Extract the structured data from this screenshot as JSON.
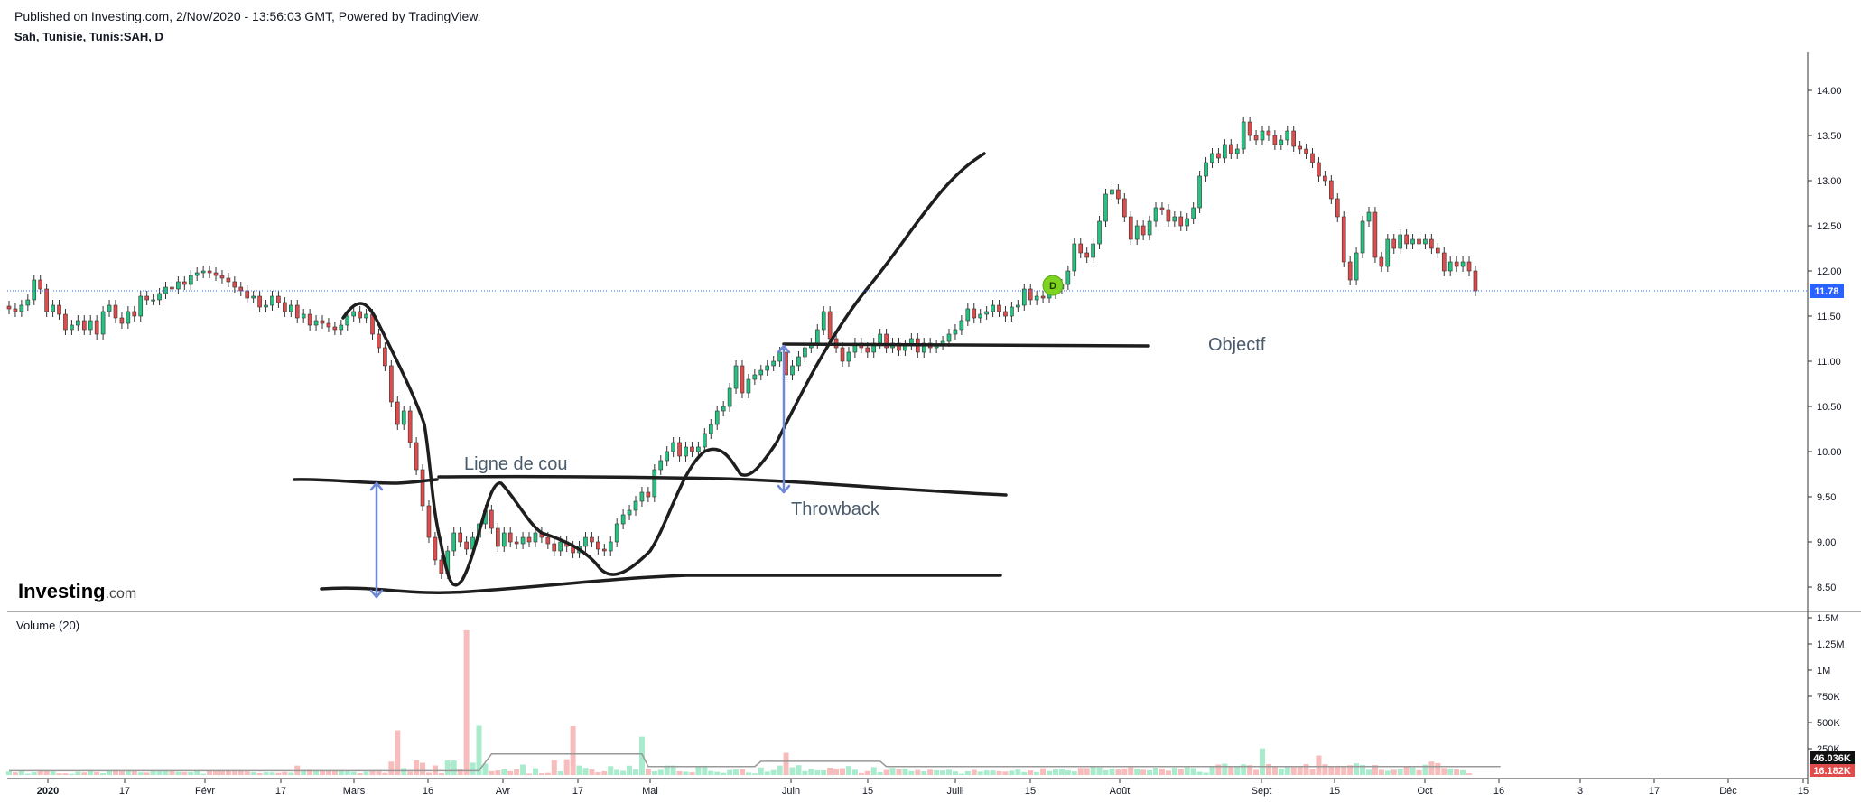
{
  "header": {
    "published": "Published on Investing.com, 2/Nov/2020 - 13:56:03 GMT, Powered by TradingView.",
    "symbol": "Sah, Tunisie, Tunis:SAH, D"
  },
  "brand": {
    "logo": "Investing",
    "logo_suffix": ".com"
  },
  "colors": {
    "up": "#26c281",
    "down": "#e04b4b",
    "up_volume": "#a8ebcd",
    "down_volume": "#f7bcbc",
    "price_line": "#2962ff",
    "drawing": "#1e1e1e",
    "arrow": "#6e89d6",
    "annotation_text": "#4a5b6c",
    "marker": "#7ed321"
  },
  "annotations": {
    "neckline_label": "Ligne de cou",
    "throwback_label": "Throwback",
    "target_label": "Objectf",
    "marker_label": "D"
  },
  "chart_data": [
    {
      "type": "candlestick",
      "symbol": "Tunis:SAH",
      "timeframe": "D",
      "y_range": [
        8.3,
        14.2
      ],
      "y_ticks": [
        "8.50",
        "9.00",
        "9.50",
        "10.00",
        "10.50",
        "11.00",
        "11.50",
        "12.00",
        "12.50",
        "13.00",
        "13.50",
        "14.00"
      ],
      "x_ticks": [
        "2020",
        "17",
        "Févr",
        "17",
        "Mars",
        "16",
        "Avr",
        "17",
        "Mai",
        "Juin",
        "15",
        "Juill",
        "15",
        "Août",
        "Sept",
        "15",
        "Oct",
        "16",
        "3",
        "17",
        "Déc",
        "15"
      ],
      "last_price": "11.78",
      "grid": false,
      "close": [
        11.58,
        11.55,
        11.62,
        11.68,
        11.9,
        11.8,
        11.55,
        11.62,
        11.52,
        11.35,
        11.4,
        11.45,
        11.35,
        11.45,
        11.3,
        11.55,
        11.62,
        11.48,
        11.42,
        11.55,
        11.5,
        11.72,
        11.68,
        11.68,
        11.75,
        11.82,
        11.8,
        11.88,
        11.85,
        11.95,
        11.98,
        12.0,
        11.98,
        11.95,
        11.92,
        11.88,
        11.82,
        11.78,
        11.7,
        11.72,
        11.6,
        11.62,
        11.72,
        11.65,
        11.55,
        11.62,
        11.48,
        11.52,
        11.4,
        11.45,
        11.42,
        11.38,
        11.35,
        11.4,
        11.5,
        11.55,
        11.48,
        11.52,
        11.3,
        11.15,
        10.95,
        10.55,
        10.3,
        10.45,
        10.1,
        9.8,
        9.4,
        9.05,
        8.8,
        8.65,
        8.9,
        9.1,
        9.0,
        8.92,
        9.05,
        9.2,
        9.35,
        9.15,
        8.95,
        9.1,
        9.0,
        8.98,
        9.05,
        9.0,
        9.1,
        9.05,
        8.98,
        8.9,
        9.0,
        8.95,
        8.88,
        8.95,
        9.05,
        9.0,
        8.92,
        8.9,
        9.0,
        9.2,
        9.3,
        9.35,
        9.45,
        9.55,
        9.5,
        9.8,
        9.9,
        10.0,
        10.1,
        9.95,
        10.05,
        10.0,
        10.05,
        10.2,
        10.3,
        10.45,
        10.5,
        10.7,
        10.95,
        10.65,
        10.8,
        10.85,
        10.9,
        10.95,
        11.0,
        11.1,
        10.85,
        10.95,
        11.05,
        11.15,
        11.2,
        11.35,
        11.55,
        11.25,
        11.15,
        11.0,
        11.1,
        11.2,
        11.15,
        11.1,
        11.2,
        11.3,
        11.15,
        11.2,
        11.12,
        11.18,
        11.25,
        11.1,
        11.2,
        11.15,
        11.18,
        11.22,
        11.3,
        11.35,
        11.45,
        11.58,
        11.48,
        11.52,
        11.55,
        11.62,
        11.55,
        11.5,
        11.6,
        11.62,
        11.8,
        11.68,
        11.72,
        11.7,
        11.75,
        11.8,
        11.85,
        12.0,
        12.3,
        12.2,
        12.15,
        12.3,
        12.55,
        12.85,
        12.9,
        12.8,
        12.6,
        12.35,
        12.5,
        12.4,
        12.55,
        12.7,
        12.68,
        12.55,
        12.6,
        12.5,
        12.58,
        12.7,
        13.05,
        13.2,
        13.3,
        13.25,
        13.4,
        13.3,
        13.35,
        13.65,
        13.5,
        13.45,
        13.55,
        13.5,
        13.4,
        13.45,
        13.55,
        13.38,
        13.35,
        13.3,
        13.2,
        13.05,
        13.0,
        12.8,
        12.6,
        12.1,
        11.9,
        12.2,
        12.55,
        12.65,
        12.15,
        12.05,
        12.35,
        12.25,
        12.4,
        12.3,
        12.35,
        12.3,
        12.35,
        12.25,
        12.2,
        12.0,
        12.1,
        12.05,
        12.1,
        12.0,
        11.78
      ]
    },
    {
      "type": "bar",
      "title": "Volume (20)",
      "y_range": [
        0,
        1500000
      ],
      "y_ticks": [
        "1.5M",
        "1.25M",
        "1M",
        "750K",
        "500K",
        "250K"
      ],
      "badges": [
        "46.036K",
        "16.182K"
      ],
      "series": [
        {
          "values": [
            33,
            24,
            44,
            13,
            26,
            35,
            36,
            33,
            16,
            16,
            11,
            29,
            24,
            39,
            28,
            17,
            35,
            47,
            33,
            46,
            40,
            24,
            23,
            37,
            33,
            40,
            43,
            28,
            27,
            26,
            39,
            12,
            44,
            34,
            42,
            41,
            34,
            35,
            32,
            25,
            18,
            25,
            24,
            20,
            28,
            22,
            89,
            48,
            49,
            44,
            44,
            36,
            41,
            38,
            33,
            29,
            17,
            30,
            38,
            33,
            20,
            127,
            426,
            65,
            31,
            138,
            116,
            22,
            90,
            18,
            137,
            137,
            52,
            1380,
            117,
            470,
            107,
            36,
            42,
            52,
            36,
            52,
            99,
            13,
            64,
            16,
            20,
            141,
            34,
            149,
            466,
            89,
            67,
            51,
            25,
            35,
            84,
            48,
            39,
            88,
            51,
            365,
            58,
            34,
            48,
            89,
            89,
            35,
            31,
            25,
            74,
            87,
            38,
            29,
            20,
            46,
            51,
            53,
            23,
            15,
            71,
            32,
            46,
            89,
            211,
            73,
            93,
            36,
            57,
            44,
            43,
            69,
            61,
            64,
            85,
            49,
            19,
            36,
            75,
            26,
            47,
            67,
            55,
            61,
            36,
            46,
            35,
            49,
            43,
            41,
            49,
            33,
            12,
            35,
            47,
            31,
            41,
            41,
            35,
            32,
            40,
            50,
            27,
            42,
            27,
            63,
            37,
            51,
            59,
            42,
            34,
            66,
            65,
            77,
            71,
            45,
            61,
            51,
            62,
            72,
            60,
            49,
            44,
            69,
            61,
            40,
            68,
            56,
            72,
            65,
            30,
            22,
            73,
            99,
            107,
            77,
            76,
            101,
            93,
            48,
            253,
            104,
            74,
            62,
            78,
            72,
            75,
            103,
            54,
            185,
            102,
            84,
            87,
            73,
            92,
            110,
            95,
            49,
            94,
            48,
            40,
            49,
            57,
            76,
            71,
            45,
            97,
            127,
            113,
            66,
            61,
            52,
            45,
            16
          ]
        },
        {
          "name": "MA 20",
          "values": [
            40,
            40,
            40,
            40,
            40,
            40,
            40,
            40,
            40,
            40,
            40,
            40,
            40,
            40,
            40,
            40,
            40,
            40,
            40,
            40,
            40,
            40,
            40,
            40,
            40,
            40,
            40,
            40,
            40,
            40,
            40,
            40,
            40,
            40,
            40,
            40,
            40,
            40,
            40,
            40,
            40,
            40,
            40,
            40,
            40,
            40,
            40,
            40,
            40,
            40,
            40,
            40,
            40,
            40,
            40,
            40,
            40,
            40,
            40,
            40,
            40,
            40,
            40,
            40,
            40,
            40,
            40,
            40,
            40,
            40,
            40,
            40,
            40,
            40,
            40,
            40,
            120,
            200,
            200,
            200,
            200,
            200,
            200,
            200,
            200,
            200,
            200,
            200,
            200,
            200,
            200,
            200,
            200,
            200,
            200,
            200,
            200,
            200,
            200,
            200,
            200,
            200,
            80,
            80,
            80,
            80,
            80,
            80,
            80,
            80,
            80,
            80,
            80,
            80,
            80,
            80,
            80,
            80,
            80,
            80,
            130,
            130,
            130,
            130,
            130,
            130,
            130,
            130,
            130,
            130,
            130,
            130,
            130,
            130,
            130,
            130,
            130,
            130,
            130,
            130,
            80,
            80,
            80,
            80,
            80,
            80,
            80,
            80,
            80,
            80,
            80,
            80,
            80,
            80,
            80,
            80,
            80,
            80,
            80,
            80,
            80,
            80,
            80,
            80,
            80,
            80,
            80,
            80,
            80,
            80,
            80,
            80,
            80,
            80,
            80,
            80,
            80,
            80,
            80,
            80,
            80,
            80,
            80,
            80,
            80,
            80,
            80,
            80,
            80,
            80,
            80,
            80,
            80,
            80,
            80,
            80,
            80,
            80,
            80,
            80,
            80,
            80,
            80,
            80,
            80,
            80,
            80,
            80,
            80,
            80,
            80,
            80,
            80,
            80,
            80,
            80,
            80,
            80,
            80,
            80,
            80,
            80,
            80,
            80,
            80,
            80,
            80,
            80,
            80,
            80,
            80,
            80,
            80,
            80,
            80,
            80,
            80,
            80,
            80
          ]
        }
      ]
    }
  ]
}
